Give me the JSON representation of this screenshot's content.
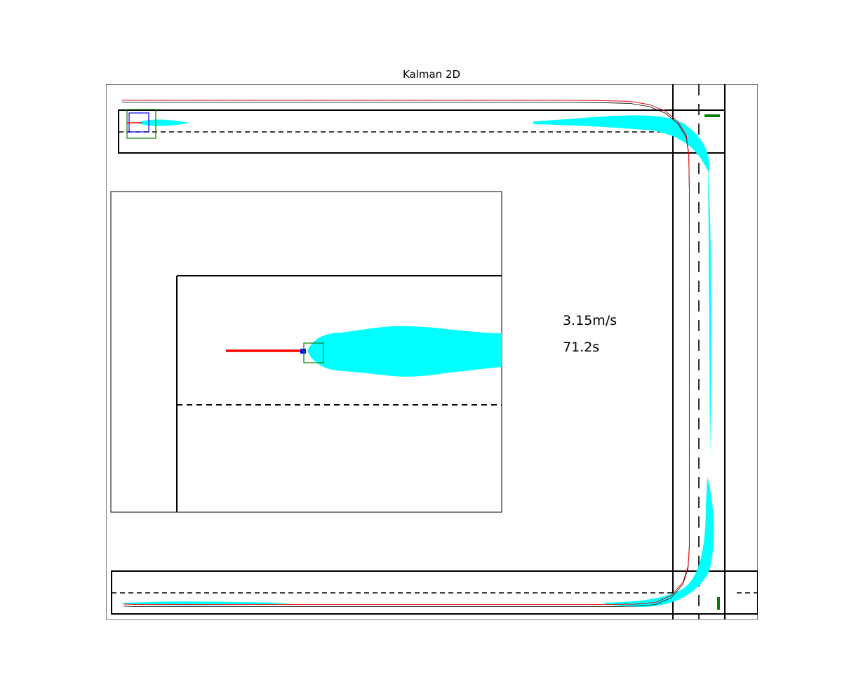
{
  "chart_data": {
    "type": "line",
    "title": "Kalman 2D",
    "xlabel": "",
    "ylabel": "",
    "grid": false,
    "legend": "none",
    "readouts": {
      "speed": "3.15m/s",
      "time": "71.2s"
    },
    "colors": {
      "uncertainty": "#00ffff",
      "estimate_path": "#ff0000",
      "measurements": "#1f77b4",
      "road_edges": "#000000",
      "lane_markings": "#000000",
      "vehicle_box": "#008000",
      "sensor_box": "#0000ff",
      "signals": "#008000"
    },
    "series": [
      {
        "points": [
          [
            0.5,
            97
          ],
          [
            3,
            97
          ],
          [
            10,
            97
          ],
          [
            20,
            97
          ],
          [
            30,
            97
          ],
          [
            40,
            97
          ],
          [
            50,
            97
          ],
          [
            60,
            97
          ],
          [
            70,
            97
          ],
          [
            75,
            96.95
          ],
          [
            80,
            96.8
          ],
          [
            83,
            96.2
          ],
          [
            85.5,
            95
          ],
          [
            87.5,
            93
          ],
          [
            88.8,
            90.5
          ],
          [
            89.2,
            87
          ],
          [
            89.3,
            80
          ],
          [
            89.3,
            70
          ],
          [
            89.3,
            60
          ],
          [
            89.3,
            50
          ],
          [
            89.3,
            40
          ],
          [
            89.3,
            30
          ],
          [
            89.3,
            20
          ],
          [
            89.3,
            14
          ],
          [
            89.1,
            10
          ],
          [
            88.3,
            7
          ],
          [
            86.5,
            4.5
          ],
          [
            84,
            3.2
          ],
          [
            81,
            2.9
          ],
          [
            77,
            2.8
          ],
          [
            70,
            2.8
          ],
          [
            60,
            2.8
          ],
          [
            50,
            2.8
          ],
          [
            40,
            2.8
          ],
          [
            30,
            2.8
          ],
          [
            20,
            2.8
          ],
          [
            10,
            2.8
          ],
          [
            3,
            2.8
          ],
          [
            0.8,
            2.9
          ]
        ]
      }
    ],
    "inset": {
      "xlim": [
        0,
        2
      ],
      "ylim": [
        -1.5,
        1.5
      ],
      "uncertainty_to": 2,
      "current_position": [
        -0.2,
        0.05
      ]
    },
    "xlim": [
      -2,
      100
    ],
    "ylim": [
      0,
      100
    ]
  }
}
